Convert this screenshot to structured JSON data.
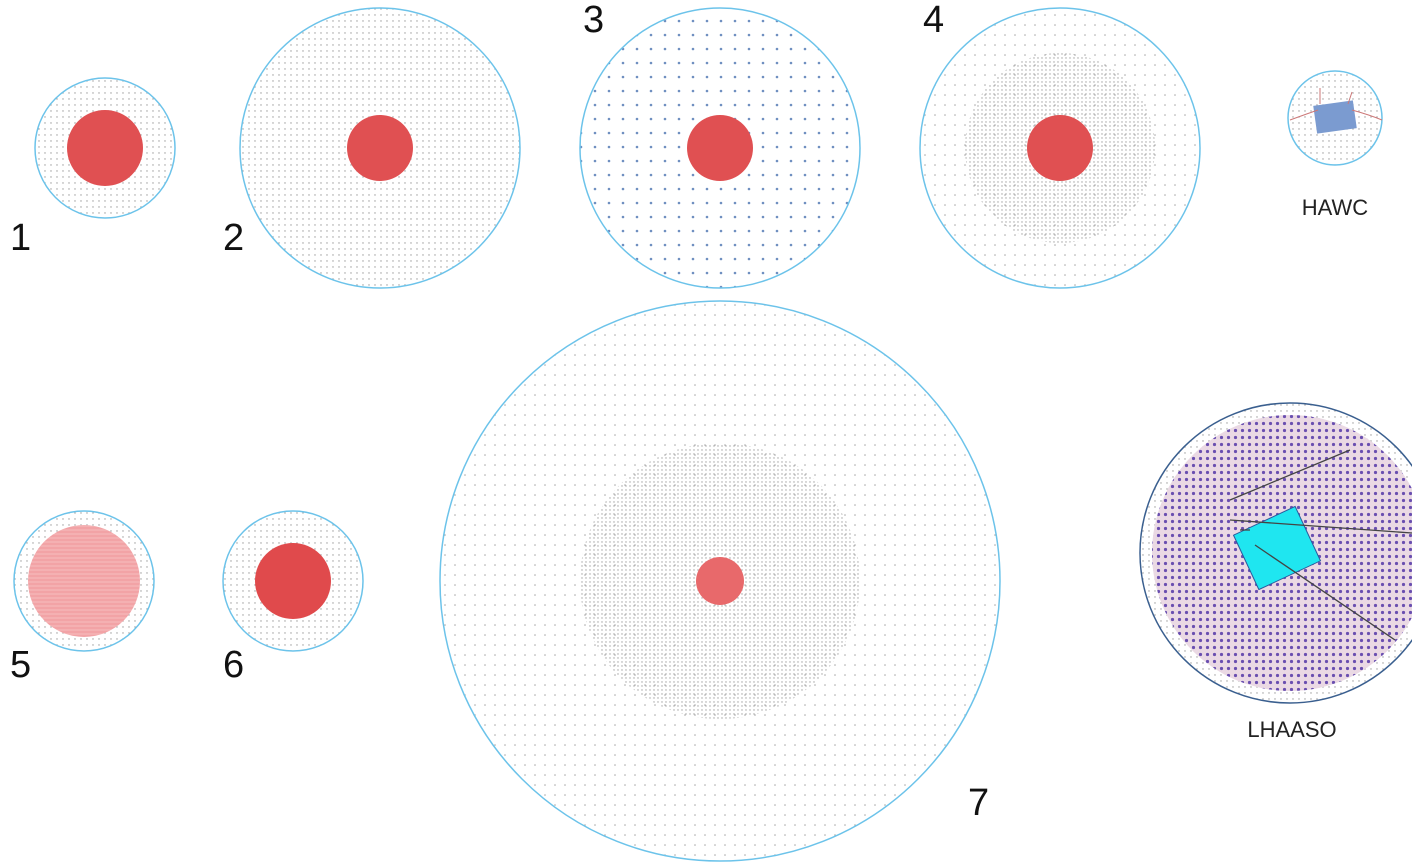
{
  "detectors": [
    {
      "label": "1"
    },
    {
      "label": "2"
    },
    {
      "label": "3"
    },
    {
      "label": "4"
    },
    {
      "label": "HAWC"
    },
    {
      "label": "5"
    },
    {
      "label": "6"
    },
    {
      "label": "7"
    },
    {
      "label": "LHAASO"
    }
  ]
}
